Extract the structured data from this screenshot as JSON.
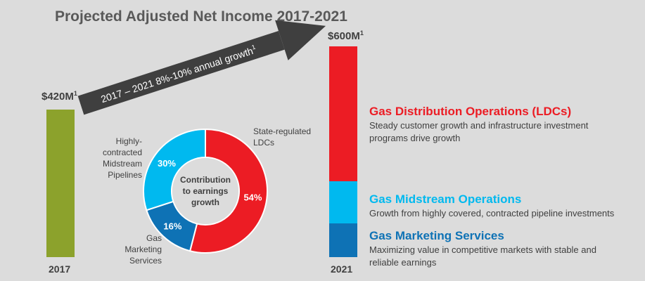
{
  "chart_data": [
    {
      "type": "bar",
      "title": "Projected Adjusted Net Income 2017-2021",
      "categories": [
        "2017",
        "2021"
      ],
      "values": [
        420,
        600
      ],
      "value_labels": [
        "$420M",
        "$600M"
      ],
      "footnote_marker": "1",
      "colors": {
        "2017": "#8ca22c"
      },
      "stacked_2021": [
        {
          "name": "Gas Distribution Operations (LDCs)",
          "color": "#ec1c24"
        },
        {
          "name": "Gas Midstream Operations",
          "color": "#00b9ef"
        },
        {
          "name": "Gas Marketing Services",
          "color": "#0e72b5"
        }
      ],
      "arrow_annotation": "2017 – 2021 8%-10% annual growth",
      "arrow_annotation_marker": "1"
    },
    {
      "type": "pie",
      "center_label": [
        "Contribution",
        "to earnings",
        "growth"
      ],
      "slices": [
        {
          "label": "State-regulated LDCs",
          "label_lines": [
            "State-regulated",
            "LDCs"
          ],
          "value": 54,
          "display": "54%",
          "color": "#ec1c24"
        },
        {
          "label": "Gas Marketing Services",
          "label_lines": [
            "Gas",
            "Marketing",
            "Services"
          ],
          "value": 16,
          "display": "16%",
          "color": "#0e72b5"
        },
        {
          "label": "Highly-contracted Midstream Pipelines",
          "label_lines": [
            "Highly-",
            "contracted",
            "Midstream",
            "Pipelines"
          ],
          "value": 30,
          "display": "30%",
          "color": "#00b9ef"
        }
      ]
    }
  ],
  "segments": [
    {
      "title": "Gas Distribution Operations (LDCs)",
      "color": "#ec1c24",
      "desc_lines": [
        "Steady customer growth and infrastructure investment",
        "programs drive growth"
      ]
    },
    {
      "title": "Gas Midstream Operations",
      "color": "#00b9ef",
      "desc_lines": [
        "Growth from highly covered, contracted pipeline investments"
      ]
    },
    {
      "title": "Gas Marketing Services",
      "color": "#0e72b5",
      "desc_lines": [
        "Maximizing value in competitive markets with stable and",
        "reliable earnings"
      ]
    }
  ]
}
